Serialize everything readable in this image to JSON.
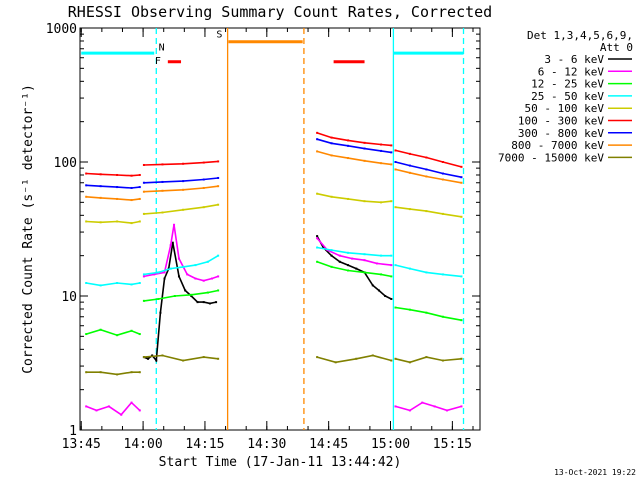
{
  "chart_data": {
    "type": "line",
    "title": "RHESSI Observing Summary Count Rates, Corrected",
    "xlabel": "Start Time (17-Jan-11 13:44:42)",
    "ylabel": "Corrected Count Rate (s⁻¹ detector⁻¹)",
    "footer": "13-Oct-2021 19:22",
    "y_scale": "log",
    "ylim": [
      1,
      1000
    ],
    "y_ticks": [
      {
        "v": 1,
        "label": "1"
      },
      {
        "v": 10,
        "label": "10"
      },
      {
        "v": 100,
        "label": "100"
      },
      {
        "v": 1000,
        "label": "1000"
      }
    ],
    "xlim_minutes": [
      0,
      97
    ],
    "x_ticks": [
      {
        "m": 0.3,
        "label": "13:45"
      },
      {
        "m": 15.3,
        "label": "14:00"
      },
      {
        "m": 30.3,
        "label": "14:15"
      },
      {
        "m": 45.3,
        "label": "14:30"
      },
      {
        "m": 60.3,
        "label": "14:45"
      },
      {
        "m": 75.3,
        "label": "15:00"
      },
      {
        "m": 90.3,
        "label": "15:15"
      }
    ],
    "legend": {
      "header1": "Det 1,3,4,5,6,9,",
      "header2": "Att 0",
      "placement": "outside-right"
    },
    "series": [
      {
        "name": "3 - 6 keV",
        "color": "#000000",
        "segments": [
          {
            "x": [
              15.5,
              16.5,
              17.5,
              18.5,
              19.5,
              20.5,
              21.5,
              22.5,
              24,
              25.5,
              27,
              28.5,
              30,
              31.5,
              33
            ],
            "y": [
              3.5,
              3.4,
              3.6,
              3.3,
              7.5,
              13.5,
              16,
              25,
              14,
              11,
              10,
              9,
              9,
              8.8,
              9
            ]
          },
          {
            "x": [
              57.5,
              59,
              61,
              63,
              65,
              67,
              69,
              71,
              72.5,
              74,
              75.5
            ],
            "y": [
              28,
              23,
              20,
              18,
              17,
              16,
              15,
              12,
              11,
              10,
              9.5
            ]
          }
        ]
      },
      {
        "name": "6 - 12 keV",
        "color": "#ff00ff",
        "segments": [
          {
            "x": [
              1.5,
              4,
              7,
              10,
              12.5,
              14.5
            ],
            "y": [
              1.5,
              1.4,
              1.5,
              1.3,
              1.6,
              1.4
            ]
          },
          {
            "x": [
              15.5,
              18,
              20.5,
              22,
              22.8,
              24,
              26,
              28,
              30,
              32,
              33.5
            ],
            "y": [
              14,
              14.5,
              15,
              24,
              34,
              19,
              14.5,
              13.5,
              13,
              13.5,
              14
            ]
          },
          {
            "x": [
              57.5,
              60,
              63,
              66,
              69,
              72,
              75.5
            ],
            "y": [
              27,
              22,
              20,
              19,
              18.5,
              17.5,
              17
            ]
          },
          {
            "x": [
              76.5,
              80,
              83,
              86,
              89,
              92.5
            ],
            "y": [
              1.5,
              1.4,
              1.6,
              1.5,
              1.4,
              1.5
            ]
          }
        ]
      },
      {
        "name": "12 - 25 keV",
        "color": "#00ff00",
        "segments": [
          {
            "x": [
              1.5,
              5,
              9,
              12.5,
              14.5
            ],
            "y": [
              5.2,
              5.6,
              5.1,
              5.5,
              5.2
            ]
          },
          {
            "x": [
              15.5,
              19,
              23,
              27,
              31,
              33.5
            ],
            "y": [
              9.2,
              9.5,
              10,
              10.2,
              10.6,
              11
            ]
          },
          {
            "x": [
              57.5,
              61,
              65,
              69,
              73,
              75.5
            ],
            "y": [
              18,
              16.5,
              15.5,
              15,
              14.5,
              14
            ]
          },
          {
            "x": [
              76.5,
              80,
              84,
              88,
              92.5
            ],
            "y": [
              8.2,
              7.9,
              7.5,
              7.0,
              6.6
            ]
          }
        ]
      },
      {
        "name": "25 - 50 keV",
        "color": "#00ffff",
        "segments": [
          {
            "x": [
              1.5,
              5,
              9,
              12.5,
              14.5
            ],
            "y": [
              12.5,
              12,
              12.5,
              12.2,
              12.5
            ]
          },
          {
            "x": [
              15.5,
              19,
              22,
              25,
              28,
              31,
              33.5
            ],
            "y": [
              14.5,
              15,
              16,
              16.5,
              17,
              18,
              20
            ]
          },
          {
            "x": [
              57.5,
              61,
              65,
              69,
              73,
              75.5
            ],
            "y": [
              23,
              22,
              21,
              20.5,
              20,
              20
            ]
          },
          {
            "x": [
              76.5,
              80,
              84,
              88,
              92.5
            ],
            "y": [
              17,
              16,
              15,
              14.5,
              14
            ]
          }
        ]
      },
      {
        "name": "50 - 100 keV",
        "color": "#cccc00",
        "segments": [
          {
            "x": [
              1.5,
              5,
              9,
              12.5,
              14.5
            ],
            "y": [
              36,
              35.5,
              36,
              35,
              36
            ]
          },
          {
            "x": [
              15.5,
              20,
              25,
              30,
              33.5
            ],
            "y": [
              41,
              42,
              44,
              46,
              48
            ]
          },
          {
            "x": [
              57.5,
              61,
              65,
              69,
              73,
              75.5
            ],
            "y": [
              58,
              55,
              53,
              51,
              50,
              51
            ]
          },
          {
            "x": [
              76.5,
              80,
              84,
              88,
              92.5
            ],
            "y": [
              46,
              44.5,
              43,
              41,
              39
            ]
          }
        ]
      },
      {
        "name": "100 - 300 keV",
        "color": "#ff0000",
        "segments": [
          {
            "x": [
              1.5,
              5,
              9,
              12.5,
              14.5
            ],
            "y": [
              82,
              81,
              80,
              79,
              80
            ]
          },
          {
            "x": [
              15.5,
              20,
              25,
              30,
              33.5
            ],
            "y": [
              95,
              96,
              97,
              99,
              101
            ]
          },
          {
            "x": [
              57.5,
              61,
              65,
              69,
              73,
              75.5
            ],
            "y": [
              165,
              152,
              145,
              139,
              135,
              133
            ]
          },
          {
            "x": [
              76.5,
              80,
              84,
              88,
              92.5
            ],
            "y": [
              122,
              115,
              108,
              100,
              92
            ]
          }
        ]
      },
      {
        "name": "300 - 800 keV",
        "color": "#0000ff",
        "segments": [
          {
            "x": [
              1.5,
              5,
              9,
              12.5,
              14.5
            ],
            "y": [
              67,
              66,
              65,
              64,
              65
            ]
          },
          {
            "x": [
              15.5,
              20,
              25,
              30,
              33.5
            ],
            "y": [
              70,
              71,
              72,
              74,
              76
            ]
          },
          {
            "x": [
              57.5,
              61,
              65,
              69,
              73,
              75.5
            ],
            "y": [
              148,
              138,
              132,
              126,
              121,
              118
            ]
          },
          {
            "x": [
              76.5,
              80,
              84,
              88,
              92.5
            ],
            "y": [
              100,
              94,
              88,
              82,
              77
            ]
          }
        ]
      },
      {
        "name": "800 - 7000 keV",
        "color": "#ff8800",
        "segments": [
          {
            "x": [
              1.5,
              5,
              9,
              12.5,
              14.5
            ],
            "y": [
              55,
              54,
              53,
              52,
              53
            ]
          },
          {
            "x": [
              15.5,
              20,
              25,
              30,
              33.5
            ],
            "y": [
              60,
              61,
              62,
              64,
              66
            ]
          },
          {
            "x": [
              57.5,
              61,
              65,
              69,
              73,
              75.5
            ],
            "y": [
              120,
              112,
              107,
              102,
              98,
              96
            ]
          },
          {
            "x": [
              76.5,
              80,
              84,
              88,
              92.5
            ],
            "y": [
              88,
              83,
              78,
              74,
              70
            ]
          }
        ]
      },
      {
        "name": "7000 - 15000 keV",
        "color": "#808000",
        "segments": [
          {
            "x": [
              1.5,
              5,
              9,
              12.5,
              14.5
            ],
            "y": [
              2.7,
              2.7,
              2.6,
              2.7,
              2.7
            ]
          },
          {
            "x": [
              15.5,
              20,
              25,
              30,
              33.5
            ],
            "y": [
              3.5,
              3.6,
              3.3,
              3.5,
              3.4
            ]
          },
          {
            "x": [
              57.5,
              62,
              67,
              71,
              75.5
            ],
            "y": [
              3.5,
              3.2,
              3.4,
              3.6,
              3.3
            ]
          },
          {
            "x": [
              76.5,
              80,
              84,
              88,
              92.5
            ],
            "y": [
              3.4,
              3.2,
              3.5,
              3.3,
              3.4
            ]
          }
        ]
      }
    ],
    "markers": {
      "night_label": "N",
      "saa_label": "S",
      "flare_label": "F",
      "vertical_lines": [
        {
          "m": 18.5,
          "color": "#00ffff",
          "style": "dashed"
        },
        {
          "m": 35.8,
          "color": "#ff8800",
          "style": "solid"
        },
        {
          "m": 54.3,
          "color": "#ff8800",
          "style": "dashed"
        },
        {
          "m": 76.0,
          "color": "#00ffff",
          "style": "solid"
        },
        {
          "m": 93.0,
          "color": "#00ffff",
          "style": "dashed"
        }
      ],
      "bars": [
        {
          "m1": 0.3,
          "m2": 18.0,
          "color": "#00ffff",
          "y": 650,
          "kind": "night"
        },
        {
          "m1": 76.0,
          "m2": 93.0,
          "color": "#00ffff",
          "y": 650,
          "kind": "night"
        },
        {
          "m1": 36.0,
          "m2": 54.0,
          "color": "#ff8800",
          "y": 790,
          "kind": "saa"
        },
        {
          "m1": 21.3,
          "m2": 24.5,
          "color": "#ff0000",
          "y": 560,
          "kind": "flare"
        },
        {
          "m1": 61.5,
          "m2": 69.0,
          "color": "#ff0000",
          "y": 560,
          "kind": "flare"
        }
      ],
      "label_positions": [
        {
          "text": "N",
          "m": 19.8,
          "y": 680,
          "color": "#00ffff"
        },
        {
          "text": "S",
          "m": 33.8,
          "y": 850,
          "color": "#ff8800"
        },
        {
          "text": "F",
          "m": 18.9,
          "y": 540,
          "color": "#ff0000"
        }
      ]
    }
  }
}
